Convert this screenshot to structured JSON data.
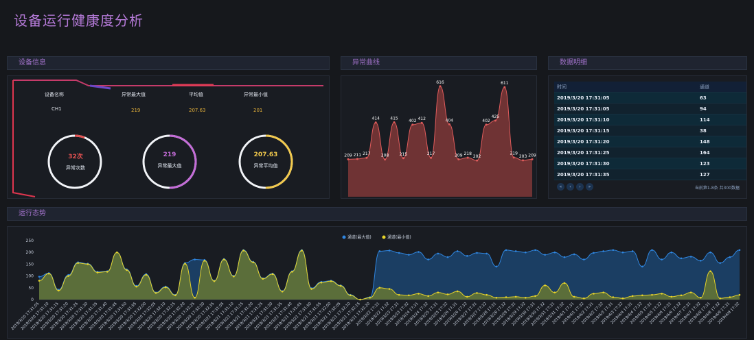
{
  "page": {
    "title": "设备运行健康度分析"
  },
  "panels": {
    "device_info": "设备信息",
    "anomaly_curve": "异常曲线",
    "data_detail": "数据明细",
    "trend": "运行态势"
  },
  "device": {
    "headers": [
      "设备名称",
      "异常最大值",
      "平均值",
      "异常最小值"
    ],
    "values": [
      "CH1",
      "219",
      "207.63",
      "201"
    ],
    "rings": [
      {
        "value": "32次",
        "label": "异常次数",
        "color": "#e35151",
        "fraction": 0.06
      },
      {
        "value": "219",
        "label": "异常最大值",
        "color": "#c46cd8",
        "fraction": 0.5
      },
      {
        "value": "207.63",
        "label": "异常平均值",
        "color": "#f2c94c",
        "fraction": 0.5
      }
    ]
  },
  "table": {
    "columns": [
      "时间",
      "通道"
    ],
    "rows": [
      [
        "2019/3/20 17:31:05",
        "63"
      ],
      [
        "2019/3/20 17:31:05",
        "94"
      ],
      [
        "2019/3/20 17:31:10",
        "114"
      ],
      [
        "2019/3/20 17:31:15",
        "38"
      ],
      [
        "2019/3/20 17:31:20",
        "148"
      ],
      [
        "2019/3/20 17:31:25",
        "164"
      ],
      [
        "2019/3/20 17:31:30",
        "123"
      ],
      [
        "2019/3/20 17:31:35",
        "127"
      ]
    ],
    "pager_info": "当前第1-8条 共300数据",
    "pager_buttons": [
      "«",
      "‹",
      "›",
      "»"
    ]
  },
  "chart_data": [
    {
      "type": "area",
      "labels": [
        "209",
        "211",
        "217",
        "414",
        "208",
        "415",
        "215",
        "402",
        "412",
        "217",
        "616",
        "404",
        "209",
        "218",
        "202",
        "402",
        "425",
        "611",
        "219",
        "203",
        "209"
      ],
      "values": [
        209,
        211,
        217,
        414,
        208,
        415,
        215,
        402,
        412,
        217,
        616,
        404,
        209,
        218,
        202,
        402,
        425,
        611,
        219,
        203,
        209
      ],
      "color": "#e15c5c"
    },
    {
      "type": "area",
      "legend": [
        "通道(最大值)",
        "通道(最小值)"
      ],
      "colors": [
        "#2f86e0",
        "#e6d32a"
      ],
      "ylim": [
        0,
        250
      ],
      "yticks": [
        0,
        50,
        100,
        150,
        200,
        250
      ],
      "x": [
        "2019/3/20 17:31:05",
        "2019/3/20 17:31:10",
        "2019/3/20 17:31:15",
        "2019/3/20 17:31:20",
        "2019/3/20 17:31:25",
        "2019/3/20 17:31:30",
        "2019/3/20 17:31:35",
        "2019/3/20 17:31:40",
        "2019/3/20 17:31:45",
        "2019/3/20 17:31:50",
        "2019/3/20 17:31:55",
        "2019/3/20 17:32:00",
        "2019/3/20 17:32:05",
        "2019/3/20 17:32:10",
        "2019/3/20 17:32:15",
        "2019/3/20 17:32:20",
        "2019/3/20 17:32:25",
        "2019/3/20 17:32:30",
        "2019/3/20 17:32:35",
        "2019/3/21 17:31:05",
        "2019/3/21 17:31:10",
        "2019/3/21 17:31:15",
        "2019/3/21 17:31:20",
        "2019/3/21 17:31:25",
        "2019/3/21 17:31:30",
        "2019/3/21 17:31:35",
        "2019/3/21 17:31:40",
        "2019/3/21 17:31:45",
        "2019/3/21 17:31:50",
        "2019/3/21 17:31:55",
        "2019/3/21 17:32:00",
        "2019/3/21 17:32:05",
        "2019/3/21 17:32:10",
        "2019/3/21 17:32:15",
        "2019/3/21 17:32:20",
        "2019/3/22 17:31",
        "2019/3/22 17:32",
        "2019/3/23 17:31",
        "2019/3/23 17:32",
        "2019/3/24 17:31",
        "2019/3/24 17:32",
        "2019/3/25 17:31",
        "2019/3/25 17:32",
        "2019/3/26 17:31",
        "2019/3/26 17:32",
        "2019/3/27 17:31",
        "2019/3/27 17:32",
        "2019/3/28 17:31",
        "2019/3/28 17:32",
        "2019/3/29 17:31",
        "2019/3/29 17:32",
        "2019/3/30 17:31",
        "2019/3/30 17:32",
        "2019/3/31 17:31",
        "2019/3/31 17:32",
        "2019/4/1 17:31",
        "2019/4/1 17:32",
        "2019/4/2 17:31",
        "2019/4/2 17:32",
        "2019/4/3 17:31",
        "2019/4/3 17:32",
        "2019/4/4 17:31",
        "2019/4/4 17:32",
        "2019/4/5 17:31",
        "2019/4/5 17:32",
        "2019/4/6 17:31",
        "2019/4/6 17:32",
        "2019/4/7 17:31",
        "2019/4/7 17:32",
        "2019/4/8 17:31",
        "2019/4/8 17:32",
        "2019/4/9 17:31",
        "2019/4/9 17:32"
      ],
      "series": [
        {
          "name": "通道(最大值)",
          "values": [
            97,
            112,
            42,
            104,
            158,
            152,
            118,
            120,
            200,
            128,
            58,
            108,
            30,
            55,
            20,
            155,
            170,
            168,
            80,
            172,
            100,
            210,
            160,
            90,
            110,
            36,
            120,
            210,
            48,
            75,
            80,
            60,
            20,
            0,
            10,
            205,
            208,
            198,
            190,
            202,
            170,
            195,
            180,
            205,
            185,
            198,
            195,
            140,
            210,
            205,
            200,
            210,
            190,
            200,
            180,
            192,
            170,
            198,
            205,
            210,
            200,
            205,
            140,
            210,
            170,
            200,
            175,
            182,
            165,
            200,
            155,
            180,
            210
          ]
        },
        {
          "name": "通道(最小值)",
          "values": [
            80,
            110,
            38,
            100,
            155,
            150,
            115,
            118,
            200,
            125,
            55,
            105,
            28,
            52,
            18,
            152,
            8,
            165,
            78,
            170,
            98,
            208,
            158,
            88,
            108,
            34,
            118,
            208,
            45,
            72,
            78,
            58,
            18,
            0,
            8,
            50,
            45,
            20,
            18,
            25,
            15,
            30,
            22,
            35,
            12,
            28,
            20,
            8,
            10,
            12,
            8,
            15,
            60,
            30,
            70,
            12,
            5,
            25,
            30,
            10,
            5,
            15,
            18,
            20,
            25,
            12,
            18,
            30,
            8,
            120,
            5,
            10,
            20
          ]
        }
      ]
    }
  ]
}
